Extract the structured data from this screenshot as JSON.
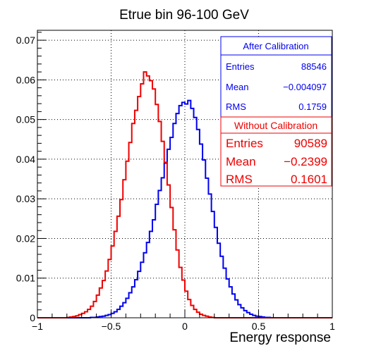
{
  "chart_data": {
    "type": "line",
    "title": "Etrue bin 96-100 GeV",
    "xlabel": "Energy response",
    "ylabel": "",
    "xlim": [
      -1,
      1
    ],
    "ylim": [
      0,
      0.0725
    ],
    "grid": true,
    "x_ticks": [
      -1,
      -0.5,
      0,
      0.5,
      1
    ],
    "x_tick_labels": [
      "−1",
      "−0.5",
      "0",
      "0.5",
      "1"
    ],
    "y_ticks": [
      0,
      0.01,
      0.02,
      0.03,
      0.04,
      0.05,
      0.06,
      0.07
    ],
    "y_tick_labels": [
      "0",
      "0.01",
      "0.02",
      "0.03",
      "0.04",
      "0.05",
      "0.06",
      "0.07"
    ],
    "bin_width": 0.02,
    "x": [
      -0.99,
      -0.97,
      -0.95,
      -0.93,
      -0.91,
      -0.89,
      -0.87,
      -0.85,
      -0.83,
      -0.81,
      -0.79,
      -0.77,
      -0.75,
      -0.73,
      -0.71,
      -0.69,
      -0.67,
      -0.65,
      -0.63,
      -0.61,
      -0.59,
      -0.57,
      -0.55,
      -0.53,
      -0.51,
      -0.49,
      -0.47,
      -0.45,
      -0.43,
      -0.41,
      -0.39,
      -0.37,
      -0.35,
      -0.33,
      -0.31,
      -0.29,
      -0.27,
      -0.25,
      -0.23,
      -0.21,
      -0.19,
      -0.17,
      -0.15,
      -0.13,
      -0.11,
      -0.09,
      -0.07,
      -0.05,
      -0.03,
      -0.01,
      0.01,
      0.03,
      0.05,
      0.07,
      0.09,
      0.11,
      0.13,
      0.15,
      0.17,
      0.19,
      0.21,
      0.23,
      0.25,
      0.27,
      0.29,
      0.31,
      0.33,
      0.35,
      0.37,
      0.39,
      0.41,
      0.43,
      0.45,
      0.47,
      0.49,
      0.51,
      0.53,
      0.55,
      0.57,
      0.59,
      0.61,
      0.63,
      0.65,
      0.67,
      0.69,
      0.71,
      0.73,
      0.75,
      0.77,
      0.79,
      0.81,
      0.83,
      0.85,
      0.87,
      0.89,
      0.91,
      0.93,
      0.95,
      0.97,
      0.99
    ],
    "series": [
      {
        "name": "After Calibration",
        "color": "#0000ee",
        "values": [
          0,
          0,
          0,
          0,
          0,
          0,
          0,
          0,
          0,
          0,
          0,
          0,
          0,
          0,
          0,
          0,
          0,
          0,
          0.0001,
          0.0001,
          0.0002,
          0.0003,
          0.0004,
          0.0006,
          0.0008,
          0.0011,
          0.0015,
          0.0021,
          0.0029,
          0.0038,
          0.0049,
          0.0063,
          0.0078,
          0.0096,
          0.0117,
          0.014,
          0.0164,
          0.019,
          0.0218,
          0.0247,
          0.0286,
          0.0321,
          0.0353,
          0.039,
          0.0425,
          0.0455,
          0.049,
          0.0515,
          0.0535,
          0.0543,
          0.0539,
          0.0548,
          0.0528,
          0.0505,
          0.0475,
          0.0438,
          0.0398,
          0.0352,
          0.0312,
          0.0268,
          0.0228,
          0.0188,
          0.0155,
          0.0125,
          0.0098,
          0.0078,
          0.006,
          0.0045,
          0.0033,
          0.0025,
          0.0018,
          0.0013,
          0.0009,
          0.0006,
          0.0004,
          0.0003,
          0.0002,
          0.0001,
          0.0001,
          0,
          0,
          0,
          0,
          0,
          0,
          0,
          0,
          0,
          0,
          0,
          0,
          0,
          0,
          0,
          0,
          0,
          0,
          0,
          0,
          0
        ]
      },
      {
        "name": "Without Calibration",
        "color": "#ee0000",
        "values": [
          0,
          0,
          0,
          0,
          0,
          0,
          0,
          0,
          0,
          0,
          0.0001,
          0.0002,
          0.0003,
          0.0005,
          0.0008,
          0.0011,
          0.0015,
          0.0021,
          0.0029,
          0.0041,
          0.0057,
          0.0075,
          0.0094,
          0.0118,
          0.0147,
          0.0181,
          0.0218,
          0.0256,
          0.0298,
          0.0348,
          0.0395,
          0.0442,
          0.049,
          0.0523,
          0.0558,
          0.059,
          0.062,
          0.061,
          0.0598,
          0.0577,
          0.0538,
          0.0495,
          0.0445,
          0.0392,
          0.0335,
          0.0278,
          0.0222,
          0.0171,
          0.0127,
          0.0095,
          0.0067,
          0.0046,
          0.0031,
          0.0021,
          0.0014,
          0.0009,
          0.0006,
          0.0004,
          0.0002,
          0.0001,
          0,
          0,
          0,
          0,
          0,
          0,
          0,
          0,
          0,
          0,
          0,
          0,
          0,
          0,
          0,
          0,
          0,
          0,
          0,
          0,
          0,
          0,
          0,
          0,
          0,
          0,
          0,
          0,
          0,
          0,
          0,
          0,
          0,
          0,
          0,
          0,
          0,
          0,
          0,
          0
        ]
      }
    ],
    "stat_boxes": [
      {
        "title": "After Calibration",
        "color": "#0000ee",
        "rows": [
          {
            "label": "Entries",
            "value": "88546"
          },
          {
            "label": "Mean",
            "value": "−0.004097"
          },
          {
            "label": "RMS",
            "value": "0.1759"
          }
        ]
      },
      {
        "title": "Without Calibration",
        "color": "#ee0000",
        "rows": [
          {
            "label": "Entries",
            "value": "90589"
          },
          {
            "label": "Mean",
            "value": "−0.2399"
          },
          {
            "label": "RMS",
            "value": "0.1601"
          }
        ]
      }
    ]
  }
}
